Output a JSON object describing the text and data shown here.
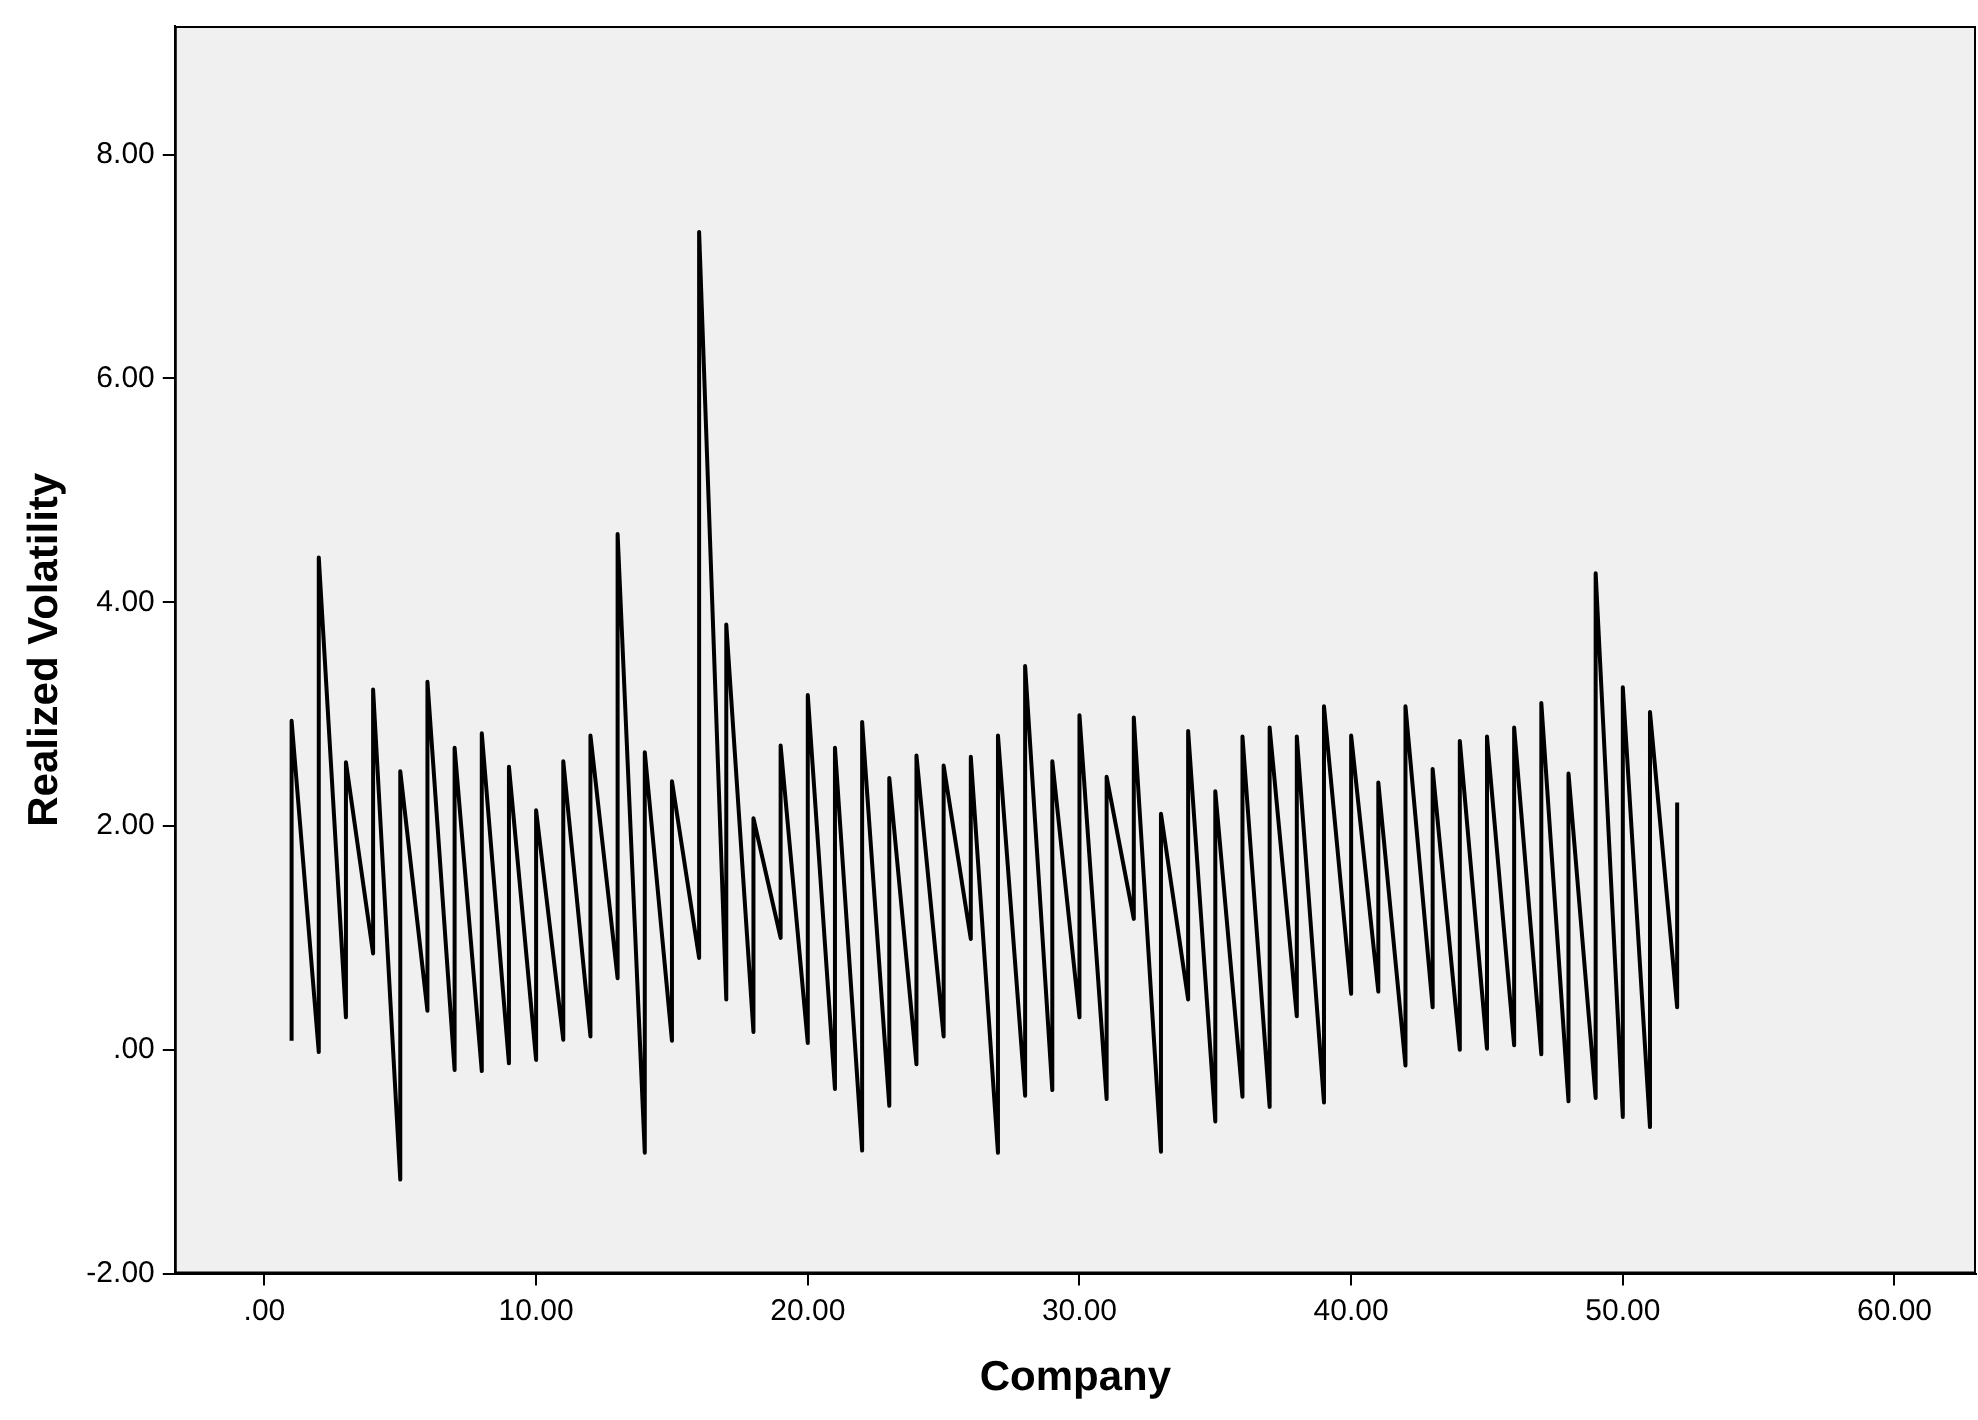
{
  "chart_data": {
    "type": "line",
    "xlabel": "Company",
    "ylabel": "Realized Volatility",
    "xlim": [
      -3.3,
      63
    ],
    "ylim": [
      -2,
      9.15
    ],
    "xticks": [
      {
        "value": 0,
        "label": ".00"
      },
      {
        "value": 10,
        "label": "10.00"
      },
      {
        "value": 20,
        "label": "20.00"
      },
      {
        "value": 30,
        "label": "30.00"
      },
      {
        "value": 40,
        "label": "40.00"
      },
      {
        "value": 50,
        "label": "50.00"
      },
      {
        "value": 60,
        "label": "60.00"
      }
    ],
    "yticks": [
      {
        "value": -2,
        "label": "-2.00"
      },
      {
        "value": 0,
        "label": ".00"
      },
      {
        "value": 2,
        "label": "2.00"
      },
      {
        "value": 4,
        "label": "4.00"
      },
      {
        "value": 6,
        "label": "6.00"
      },
      {
        "value": 8,
        "label": "8.00"
      }
    ],
    "grid": false,
    "legend": false,
    "marker": "none",
    "line_style": "solid",
    "series": [
      {
        "color": "#000000",
        "x": [
          1,
          1,
          2,
          2,
          3,
          3,
          4,
          4,
          5,
          5,
          6,
          6,
          7,
          7,
          8,
          8,
          9,
          9,
          10,
          10,
          11,
          11,
          12,
          12,
          13,
          13,
          14,
          14,
          15,
          15,
          16,
          16,
          17,
          17,
          18,
          18,
          19,
          19,
          20,
          20,
          21,
          21,
          22,
          22,
          23,
          23,
          24,
          24,
          25,
          25,
          26,
          26,
          27,
          27,
          28,
          28,
          29,
          29,
          30,
          30,
          31,
          31,
          32,
          32,
          33,
          33,
          34,
          34,
          35,
          35,
          36,
          36,
          37,
          37,
          38,
          38,
          39,
          39,
          40,
          40,
          41,
          41,
          42,
          42,
          43,
          43,
          44,
          44,
          45,
          45,
          46,
          46,
          47,
          47,
          48,
          48,
          49,
          49,
          50,
          50,
          51,
          51,
          52,
          52
        ],
        "values": [
          0.08,
          2.94,
          -0.02,
          4.4,
          0.29,
          2.57,
          0.86,
          3.22,
          -1.16,
          2.49,
          0.35,
          3.29,
          -0.18,
          2.7,
          -0.19,
          2.83,
          -0.12,
          2.53,
          -0.09,
          2.14,
          0.09,
          2.58,
          0.12,
          2.81,
          0.64,
          4.61,
          -0.92,
          2.66,
          0.08,
          2.4,
          0.82,
          7.31,
          0.45,
          3.8,
          0.16,
          2.07,
          1.0,
          2.72,
          0.06,
          3.17,
          -0.35,
          2.7,
          -0.9,
          2.93,
          -0.5,
          2.43,
          -0.13,
          2.63,
          0.12,
          2.54,
          0.99,
          2.62,
          -0.92,
          2.81,
          -0.41,
          3.43,
          -0.36,
          2.58,
          0.29,
          2.99,
          -0.44,
          2.44,
          1.17,
          2.97,
          -0.91,
          2.11,
          0.45,
          2.85,
          -0.64,
          2.31,
          -0.42,
          2.8,
          -0.51,
          2.88,
          0.3,
          2.8,
          -0.47,
          3.07,
          0.5,
          2.81,
          0.52,
          2.39,
          -0.14,
          3.07,
          0.38,
          2.51,
          0.0,
          2.76,
          0.01,
          2.8,
          0.04,
          2.88,
          -0.04,
          3.1,
          -0.46,
          2.47,
          -0.43,
          4.26,
          -0.6,
          3.24,
          -0.69,
          3.02,
          0.38,
          2.21
        ]
      }
    ]
  }
}
